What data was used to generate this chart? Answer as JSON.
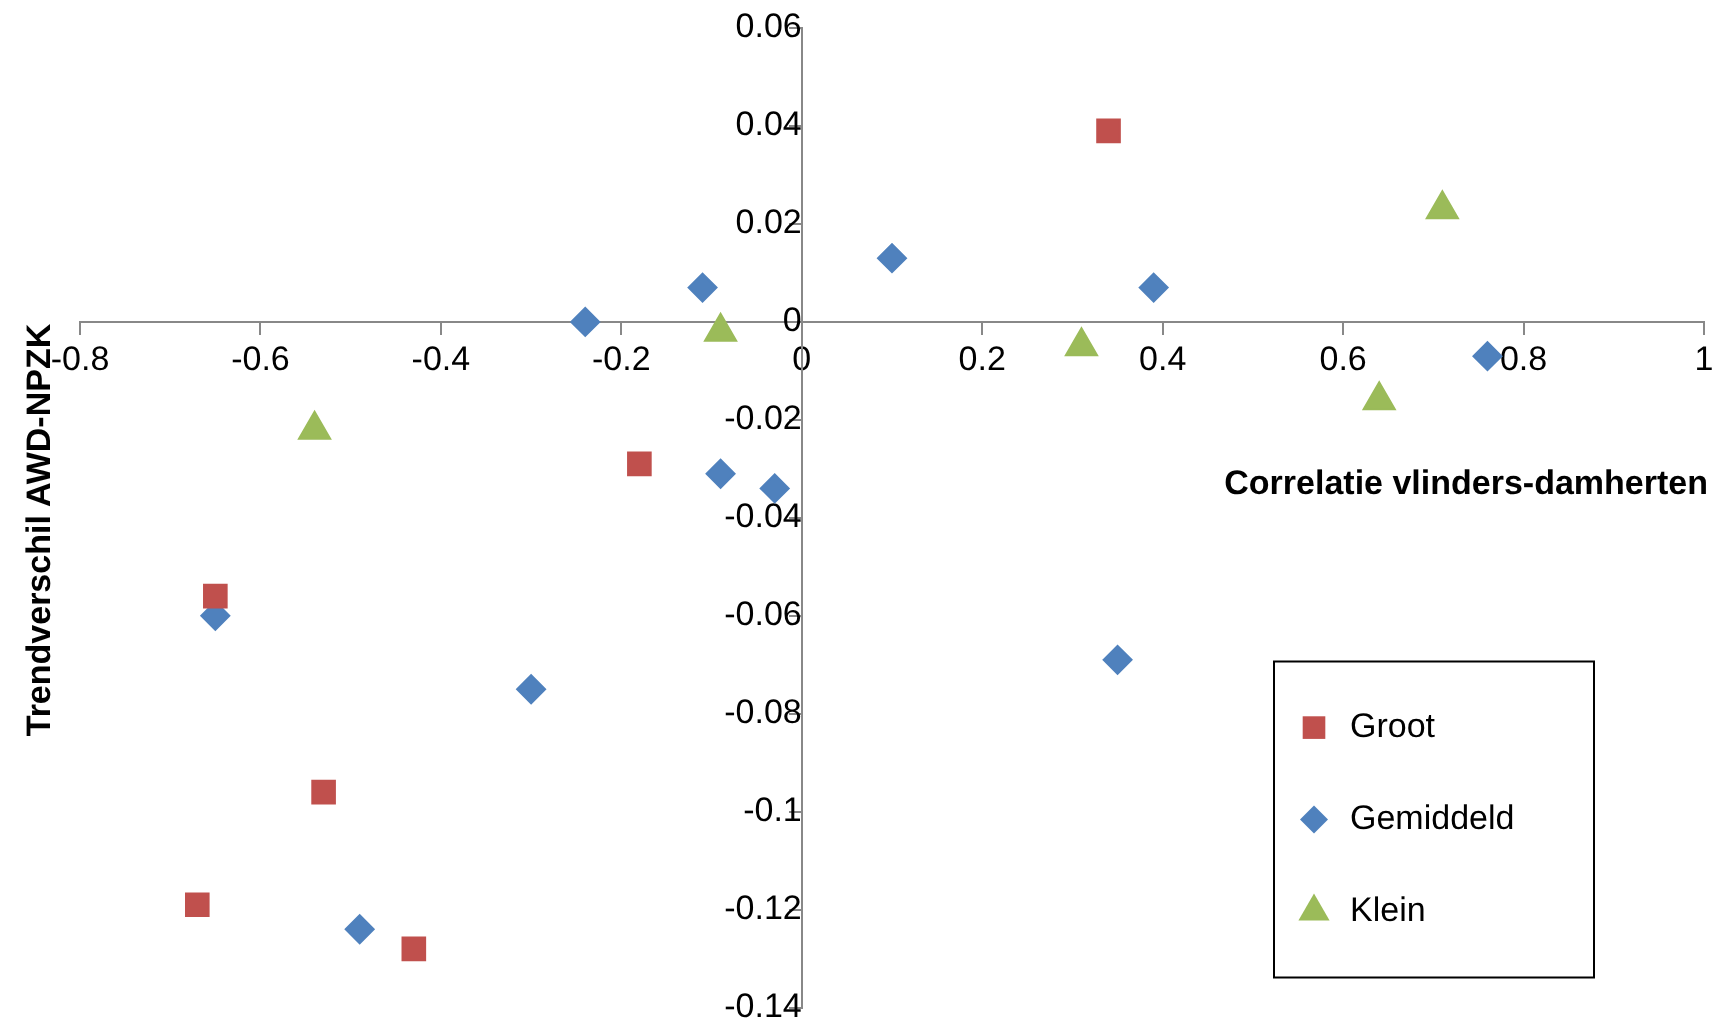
{
  "chart_data": {
    "type": "scatter",
    "xlabel": "Correlatie vlinders-damherten",
    "ylabel": "Trendverschil AWD-NPZK",
    "xlim": [
      -0.8,
      1
    ],
    "xticks": [
      -0.8,
      -0.6,
      -0.4,
      -0.2,
      0,
      0.2,
      0.4,
      0.6,
      0.8,
      1
    ],
    "ylim": [
      -0.14,
      0.06
    ],
    "yticks": [
      -0.14,
      -0.12,
      -0.1,
      -0.08,
      -0.06,
      -0.04,
      -0.02,
      0,
      0.02,
      0.04,
      0.06
    ],
    "grid": false,
    "legend": "bottom right",
    "series": [
      {
        "name": "Groot",
        "color": "#c0504d",
        "marker": "square",
        "x": [
          0.34,
          -0.18,
          -0.65,
          -0.53,
          -0.67,
          -0.43
        ],
        "values": [
          0.039,
          -0.029,
          -0.056,
          -0.096,
          -0.119,
          -0.128
        ]
      },
      {
        "name": "Gemiddeld",
        "color": "#4f81bd",
        "marker": "diamond",
        "x": [
          0.1,
          -0.11,
          -0.24,
          0.39,
          0.76,
          -0.09,
          -0.03,
          0.35,
          -0.65,
          -0.3,
          -0.49
        ],
        "values": [
          0.013,
          0.007,
          0,
          0.007,
          -0.007,
          -0.031,
          -0.034,
          -0.069,
          -0.06,
          -0.075,
          -0.124
        ]
      },
      {
        "name": "Klein",
        "color": "#9bbb59",
        "marker": "triangle",
        "x": [
          -0.09,
          0.31,
          0.71,
          0.64,
          -0.54
        ],
        "values": [
          -0.002,
          -0.005,
          0.023,
          -0.016,
          -0.022
        ]
      }
    ]
  }
}
